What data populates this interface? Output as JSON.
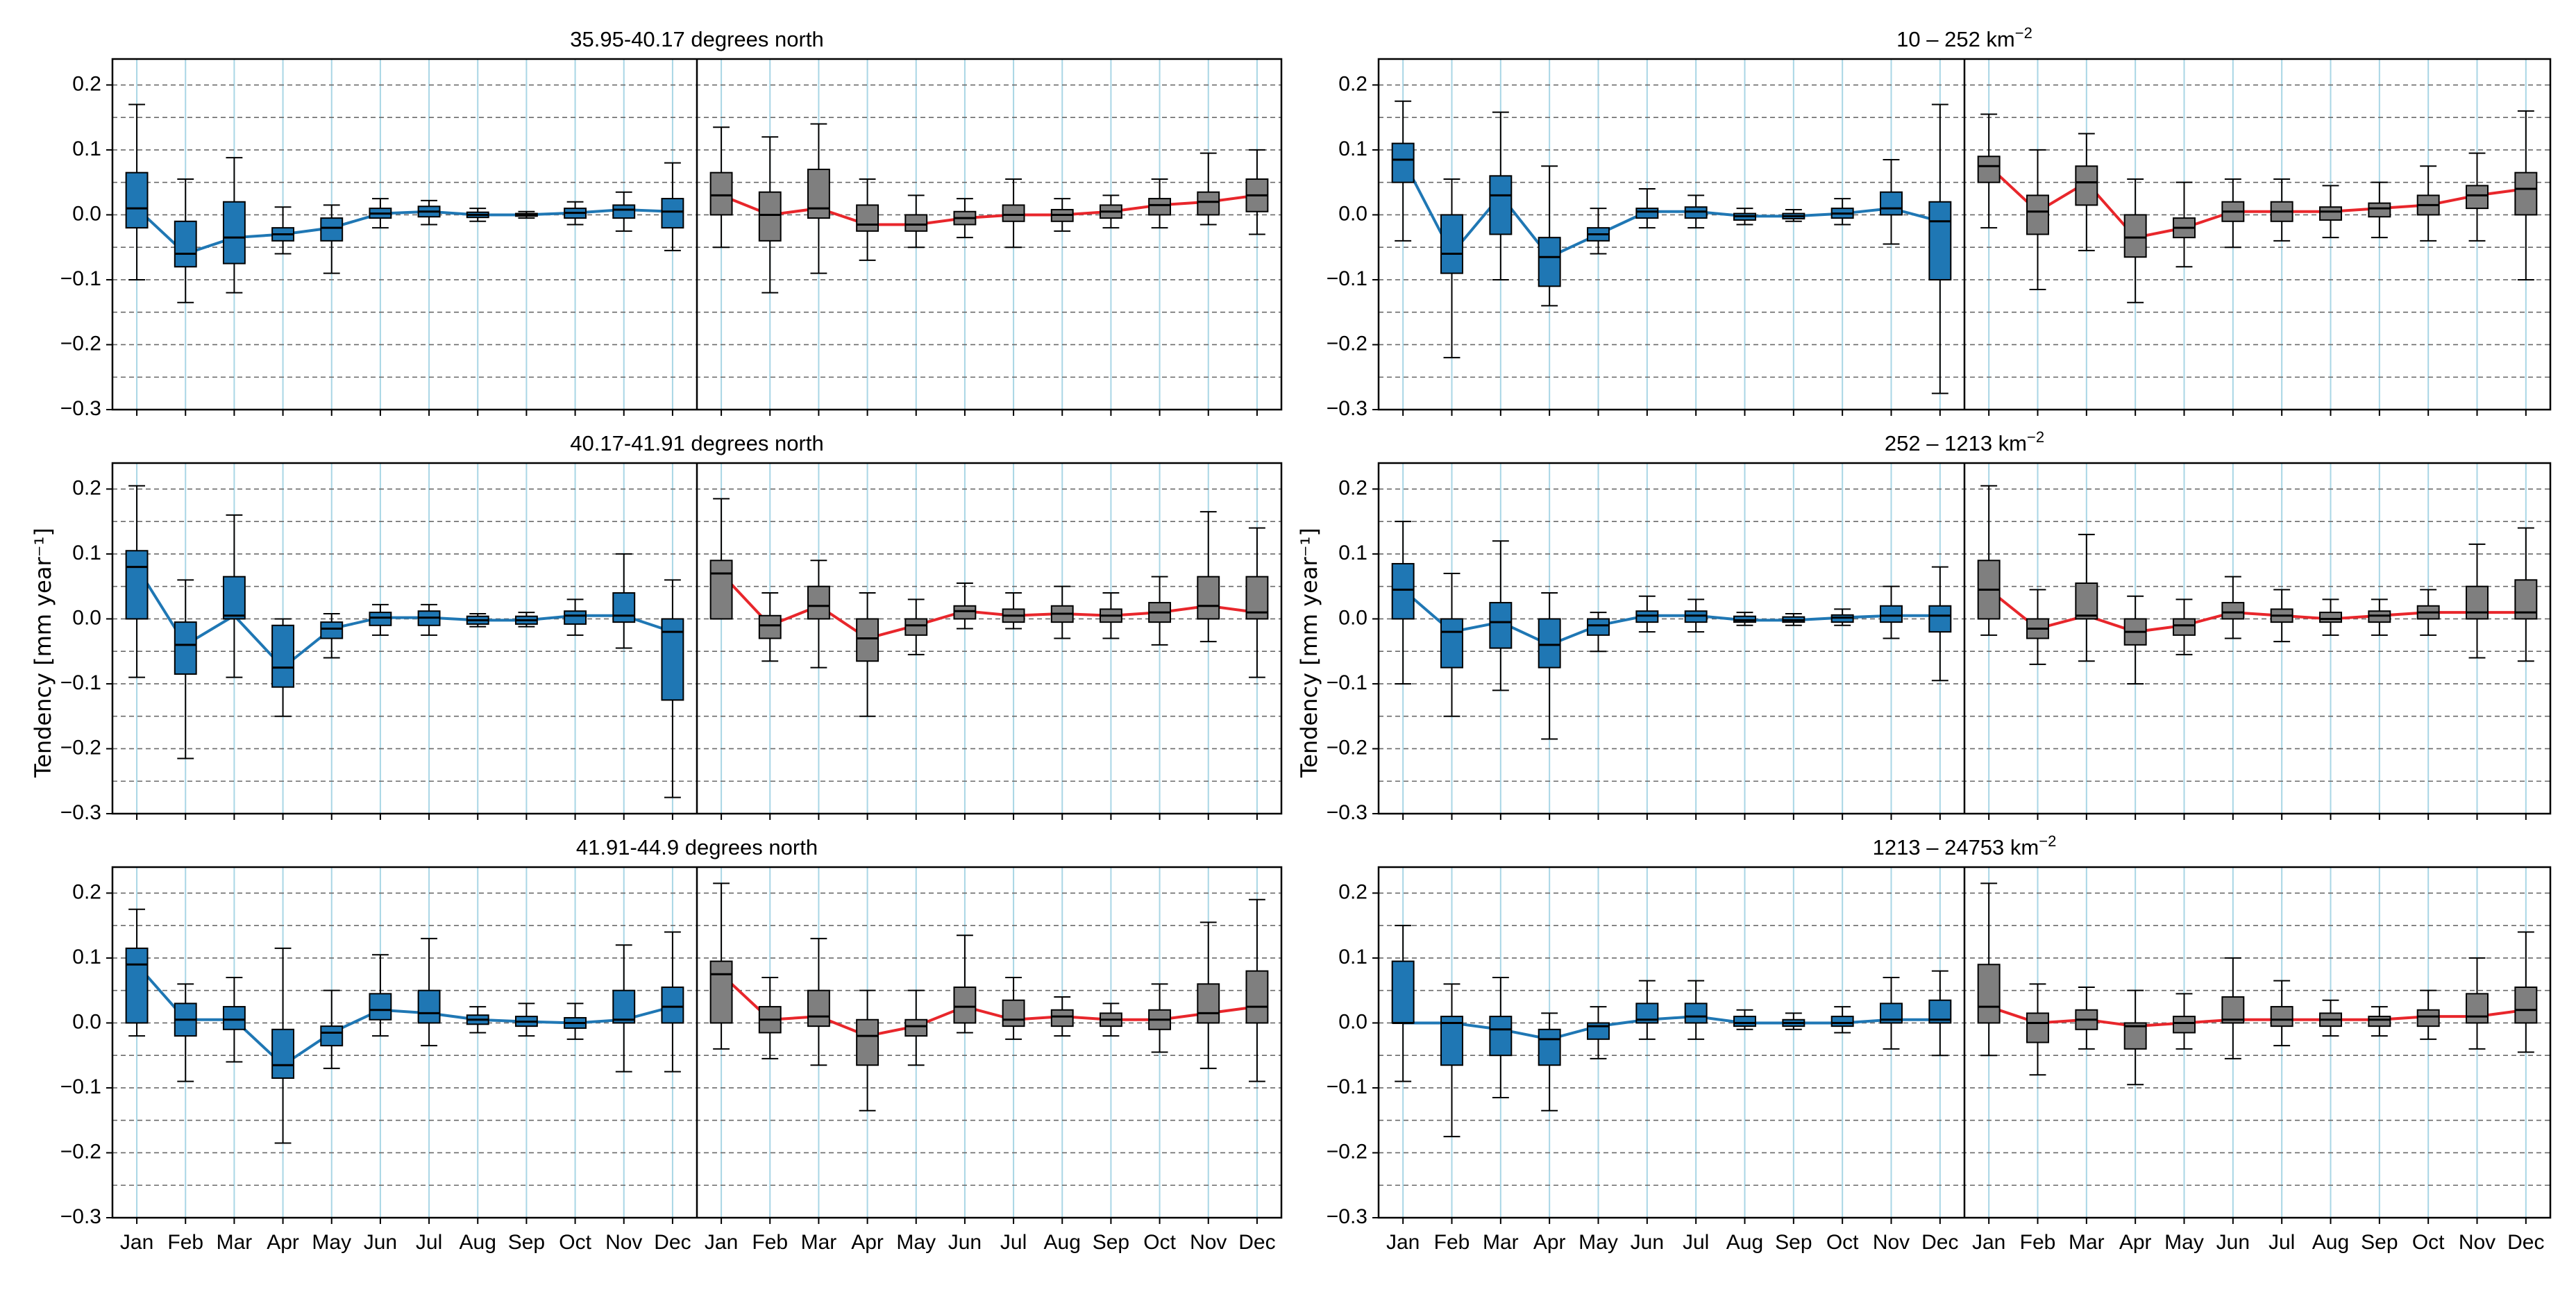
{
  "figure": {
    "y_axis_label": "Tendency [mm year⁻¹]",
    "colors": {
      "blue_box": "#1f77b4",
      "blue_line": "#1f77b4",
      "gray_box": "#7f7f7f",
      "red_line": "#e8262b",
      "grid_v": "#a9d6e5",
      "grid_h": "#6b6b6b",
      "whisker": "#000000"
    }
  },
  "chart_data": [
    {
      "type": "box",
      "title": "35.95-40.17 degrees north",
      "months": [
        "Jan",
        "Feb",
        "Mar",
        "Apr",
        "May",
        "Jun",
        "Jul",
        "Aug",
        "Sep",
        "Oct",
        "Nov",
        "Dec"
      ],
      "ylim": [
        -0.3,
        0.24
      ],
      "yticks": [
        -0.3,
        -0.2,
        -0.1,
        0.0,
        0.1,
        0.2
      ],
      "ytick_labels": [
        "−0.3",
        "−0.2",
        "−0.1",
        "0.0",
        "0.1",
        "0.2"
      ],
      "grid": true,
      "series": [
        {
          "median": [
            0.01,
            -0.06,
            -0.035,
            -0.03,
            -0.02,
            0.002,
            0.005,
            0.0,
            0.0,
            0.003,
            0.008,
            0.005
          ],
          "q1": [
            -0.02,
            -0.08,
            -0.075,
            -0.04,
            -0.04,
            -0.005,
            -0.003,
            -0.004,
            -0.002,
            -0.005,
            -0.005,
            -0.02
          ],
          "q3": [
            0.065,
            -0.01,
            0.02,
            -0.02,
            -0.005,
            0.01,
            0.013,
            0.004,
            0.002,
            0.01,
            0.015,
            0.025
          ],
          "whislo": [
            -0.1,
            -0.135,
            -0.12,
            -0.06,
            -0.09,
            -0.02,
            -0.015,
            -0.01,
            -0.005,
            -0.015,
            -0.025,
            -0.055
          ],
          "whishi": [
            0.17,
            0.055,
            0.088,
            0.012,
            0.015,
            0.025,
            0.022,
            0.01,
            0.005,
            0.02,
            0.035,
            0.08
          ]
        },
        {
          "median": [
            0.03,
            0.0,
            0.01,
            -0.015,
            -0.015,
            -0.005,
            0.0,
            0.0,
            0.005,
            0.015,
            0.02,
            0.03
          ],
          "q1": [
            0.0,
            -0.04,
            -0.005,
            -0.025,
            -0.025,
            -0.015,
            -0.01,
            -0.01,
            -0.005,
            0.0,
            0.0,
            0.005
          ],
          "q3": [
            0.065,
            0.035,
            0.07,
            0.015,
            0.0,
            0.005,
            0.015,
            0.008,
            0.015,
            0.025,
            0.035,
            0.055
          ],
          "whislo": [
            -0.05,
            -0.12,
            -0.09,
            -0.07,
            -0.05,
            -0.035,
            -0.05,
            -0.025,
            -0.02,
            -0.02,
            -0.015,
            -0.03
          ],
          "whishi": [
            0.135,
            0.12,
            0.14,
            0.055,
            0.03,
            0.025,
            0.055,
            0.025,
            0.03,
            0.055,
            0.095,
            0.1
          ]
        }
      ]
    },
    {
      "type": "box",
      "title": "10 – 252 km",
      "title_sup": "−2",
      "months": [
        "Jan",
        "Feb",
        "Mar",
        "Apr",
        "May",
        "Jun",
        "Jul",
        "Aug",
        "Sep",
        "Oct",
        "Nov",
        "Dec"
      ],
      "ylim": [
        -0.3,
        0.24
      ],
      "yticks": [
        -0.3,
        -0.2,
        -0.1,
        0.0,
        0.1,
        0.2
      ],
      "ytick_labels": [
        "−0.3",
        "−0.2",
        "−0.1",
        "0.0",
        "0.1",
        "0.2"
      ],
      "grid": true,
      "series": [
        {
          "median": [
            0.085,
            -0.06,
            0.03,
            -0.065,
            -0.03,
            0.005,
            0.005,
            -0.002,
            -0.002,
            0.002,
            0.01,
            -0.01
          ],
          "q1": [
            0.05,
            -0.09,
            -0.03,
            -0.11,
            -0.04,
            -0.005,
            -0.005,
            -0.008,
            -0.006,
            -0.005,
            0.0,
            -0.1
          ],
          "q3": [
            0.11,
            0.0,
            0.06,
            -0.035,
            -0.02,
            0.01,
            0.012,
            0.002,
            0.002,
            0.01,
            0.035,
            0.02
          ],
          "whislo": [
            -0.04,
            -0.22,
            -0.1,
            -0.14,
            -0.06,
            -0.02,
            -0.02,
            -0.015,
            -0.01,
            -0.015,
            -0.045,
            -0.275
          ],
          "whishi": [
            0.175,
            0.055,
            0.158,
            0.075,
            0.01,
            0.04,
            0.03,
            0.01,
            0.008,
            0.025,
            0.085,
            0.17
          ]
        },
        {
          "median": [
            0.075,
            0.005,
            0.05,
            -0.035,
            -0.02,
            0.005,
            0.005,
            0.005,
            0.01,
            0.015,
            0.03,
            0.04
          ],
          "q1": [
            0.05,
            -0.03,
            0.015,
            -0.065,
            -0.035,
            -0.01,
            -0.01,
            -0.008,
            -0.003,
            0.0,
            0.01,
            0.0
          ],
          "q3": [
            0.09,
            0.03,
            0.075,
            0.0,
            -0.005,
            0.02,
            0.02,
            0.012,
            0.018,
            0.03,
            0.045,
            0.065
          ],
          "whislo": [
            -0.02,
            -0.115,
            -0.055,
            -0.135,
            -0.08,
            -0.05,
            -0.04,
            -0.035,
            -0.035,
            -0.04,
            -0.04,
            -0.1
          ],
          "whishi": [
            0.155,
            0.1,
            0.125,
            0.055,
            0.05,
            0.055,
            0.055,
            0.045,
            0.05,
            0.075,
            0.095,
            0.16
          ]
        }
      ]
    },
    {
      "type": "box",
      "title": "40.17-41.91 degrees north",
      "months": [
        "Jan",
        "Feb",
        "Mar",
        "Apr",
        "May",
        "Jun",
        "Jul",
        "Aug",
        "Sep",
        "Oct",
        "Nov",
        "Dec"
      ],
      "ylim": [
        -0.3,
        0.24
      ],
      "yticks": [
        -0.3,
        -0.2,
        -0.1,
        0.0,
        0.1,
        0.2
      ],
      "ytick_labels": [
        "−0.3",
        "−0.2",
        "−0.1",
        "0.0",
        "0.1",
        "0.2"
      ],
      "grid": true,
      "series": [
        {
          "median": [
            0.08,
            -0.04,
            0.005,
            -0.075,
            -0.015,
            0.002,
            0.002,
            -0.002,
            -0.002,
            0.005,
            0.005,
            -0.02
          ],
          "q1": [
            0.0,
            -0.085,
            0.0,
            -0.105,
            -0.03,
            -0.01,
            -0.01,
            -0.008,
            -0.008,
            -0.008,
            -0.005,
            -0.125
          ],
          "q3": [
            0.105,
            -0.005,
            0.065,
            -0.01,
            -0.005,
            0.01,
            0.012,
            0.004,
            0.004,
            0.012,
            0.04,
            0.0
          ],
          "whislo": [
            -0.09,
            -0.215,
            -0.09,
            -0.15,
            -0.06,
            -0.025,
            -0.025,
            -0.012,
            -0.012,
            -0.025,
            -0.045,
            -0.275
          ],
          "whishi": [
            0.205,
            0.06,
            0.16,
            0.0,
            0.008,
            0.022,
            0.022,
            0.008,
            0.01,
            0.03,
            0.1,
            0.06
          ]
        },
        {
          "median": [
            0.07,
            -0.01,
            0.02,
            -0.03,
            -0.01,
            0.012,
            0.005,
            0.008,
            0.005,
            0.01,
            0.02,
            0.01
          ],
          "q1": [
            0.0,
            -0.03,
            0.0,
            -0.065,
            -0.025,
            0.0,
            -0.005,
            -0.005,
            -0.005,
            -0.005,
            0.0,
            0.0
          ],
          "q3": [
            0.09,
            0.005,
            0.05,
            0.0,
            0.0,
            0.02,
            0.015,
            0.02,
            0.015,
            0.025,
            0.065,
            0.065
          ],
          "whislo": [
            0.0,
            -0.065,
            -0.075,
            -0.15,
            -0.055,
            -0.015,
            -0.015,
            -0.03,
            -0.03,
            -0.04,
            -0.035,
            -0.09
          ],
          "whishi": [
            0.185,
            0.04,
            0.09,
            0.04,
            0.03,
            0.055,
            0.04,
            0.05,
            0.04,
            0.065,
            0.165,
            0.14
          ]
        }
      ]
    },
    {
      "type": "box",
      "title": "252 – 1213 km",
      "title_sup": "−2",
      "months": [
        "Jan",
        "Feb",
        "Mar",
        "Apr",
        "May",
        "Jun",
        "Jul",
        "Aug",
        "Sep",
        "Oct",
        "Nov",
        "Dec"
      ],
      "ylim": [
        -0.3,
        0.24
      ],
      "yticks": [
        -0.3,
        -0.2,
        -0.1,
        0.0,
        0.1,
        0.2
      ],
      "ytick_labels": [
        "−0.3",
        "−0.2",
        "−0.1",
        "0.0",
        "0.1",
        "0.2"
      ],
      "grid": true,
      "series": [
        {
          "median": [
            0.045,
            -0.02,
            -0.005,
            -0.04,
            -0.01,
            0.005,
            0.005,
            -0.002,
            -0.002,
            0.002,
            0.005,
            0.005
          ],
          "q1": [
            0.0,
            -0.075,
            -0.045,
            -0.075,
            -0.025,
            -0.005,
            -0.005,
            -0.005,
            -0.005,
            -0.005,
            -0.005,
            -0.02
          ],
          "q3": [
            0.085,
            0.0,
            0.025,
            0.0,
            0.0,
            0.012,
            0.012,
            0.004,
            0.003,
            0.006,
            0.02,
            0.02
          ],
          "whislo": [
            -0.1,
            -0.15,
            -0.11,
            -0.185,
            -0.05,
            -0.02,
            -0.02,
            -0.01,
            -0.01,
            -0.01,
            -0.03,
            -0.095
          ],
          "whishi": [
            0.15,
            0.07,
            0.12,
            0.04,
            0.01,
            0.035,
            0.03,
            0.01,
            0.008,
            0.015,
            0.05,
            0.08
          ]
        },
        {
          "median": [
            0.045,
            -0.015,
            0.005,
            -0.02,
            -0.01,
            0.01,
            0.005,
            0.0,
            0.005,
            0.01,
            0.01,
            0.01
          ],
          "q1": [
            0.0,
            -0.03,
            0.0,
            -0.04,
            -0.025,
            0.0,
            -0.005,
            -0.005,
            -0.005,
            0.0,
            0.0,
            0.0
          ],
          "q3": [
            0.09,
            0.0,
            0.055,
            0.0,
            0.0,
            0.025,
            0.015,
            0.01,
            0.012,
            0.02,
            0.05,
            0.06
          ],
          "whislo": [
            -0.025,
            -0.07,
            -0.065,
            -0.1,
            -0.055,
            -0.03,
            -0.035,
            -0.025,
            -0.025,
            -0.025,
            -0.06,
            -0.065
          ],
          "whishi": [
            0.205,
            0.045,
            0.13,
            0.035,
            0.03,
            0.065,
            0.045,
            0.03,
            0.03,
            0.045,
            0.115,
            0.14
          ]
        }
      ]
    },
    {
      "type": "box",
      "title": "41.91-44.9 degrees north",
      "months": [
        "Jan",
        "Feb",
        "Mar",
        "Apr",
        "May",
        "Jun",
        "Jul",
        "Aug",
        "Sep",
        "Oct",
        "Nov",
        "Dec"
      ],
      "ylim": [
        -0.3,
        0.24
      ],
      "yticks": [
        -0.3,
        -0.2,
        -0.1,
        0.0,
        0.1,
        0.2
      ],
      "ytick_labels": [
        "−0.3",
        "−0.2",
        "−0.1",
        "0.0",
        "0.1",
        "0.2"
      ],
      "grid": true,
      "series": [
        {
          "median": [
            0.09,
            0.005,
            0.005,
            -0.065,
            -0.015,
            0.02,
            0.015,
            0.005,
            0.002,
            0.0,
            0.005,
            0.025
          ],
          "q1": [
            0.0,
            -0.02,
            -0.01,
            -0.085,
            -0.035,
            0.005,
            0.0,
            -0.002,
            -0.005,
            -0.008,
            0.0,
            0.0
          ],
          "q3": [
            0.115,
            0.03,
            0.025,
            -0.01,
            -0.005,
            0.045,
            0.05,
            0.012,
            0.01,
            0.008,
            0.05,
            0.055
          ],
          "whislo": [
            -0.02,
            -0.09,
            -0.06,
            -0.185,
            -0.07,
            -0.02,
            -0.035,
            -0.015,
            -0.02,
            -0.025,
            -0.075,
            -0.075
          ],
          "whishi": [
            0.175,
            0.06,
            0.07,
            0.115,
            0.05,
            0.105,
            0.13,
            0.025,
            0.03,
            0.03,
            0.12,
            0.14
          ]
        },
        {
          "median": [
            0.075,
            0.005,
            0.01,
            -0.02,
            -0.005,
            0.025,
            0.005,
            0.01,
            0.005,
            0.005,
            0.015,
            0.025
          ],
          "q1": [
            0.0,
            -0.015,
            -0.005,
            -0.065,
            -0.02,
            0.0,
            -0.005,
            -0.005,
            -0.005,
            -0.01,
            0.0,
            0.0
          ],
          "q3": [
            0.095,
            0.025,
            0.05,
            0.005,
            0.005,
            0.055,
            0.035,
            0.02,
            0.015,
            0.02,
            0.06,
            0.08
          ],
          "whislo": [
            -0.04,
            -0.055,
            -0.065,
            -0.135,
            -0.065,
            -0.015,
            -0.025,
            -0.02,
            -0.02,
            -0.045,
            -0.07,
            -0.09
          ],
          "whishi": [
            0.215,
            0.07,
            0.13,
            0.05,
            0.05,
            0.135,
            0.07,
            0.04,
            0.03,
            0.06,
            0.155,
            0.19
          ]
        }
      ]
    },
    {
      "type": "box",
      "title": "1213 – 24753 km",
      "title_sup": "−2",
      "months": [
        "Jan",
        "Feb",
        "Mar",
        "Apr",
        "May",
        "Jun",
        "Jul",
        "Aug",
        "Sep",
        "Oct",
        "Nov",
        "Dec"
      ],
      "ylim": [
        -0.3,
        0.24
      ],
      "yticks": [
        -0.3,
        -0.2,
        -0.1,
        0.0,
        0.1,
        0.2
      ],
      "ytick_labels": [
        "−0.3",
        "−0.2",
        "−0.1",
        "0.0",
        "0.1",
        "0.2"
      ],
      "grid": true,
      "series": [
        {
          "median": [
            0.0,
            0.0,
            -0.01,
            -0.025,
            -0.005,
            0.005,
            0.01,
            0.0,
            0.0,
            0.0,
            0.005,
            0.005
          ],
          "q1": [
            0.0,
            -0.065,
            -0.05,
            -0.065,
            -0.025,
            0.0,
            0.0,
            -0.005,
            -0.005,
            -0.005,
            0.0,
            0.0
          ],
          "q3": [
            0.095,
            0.01,
            0.01,
            -0.01,
            0.0,
            0.03,
            0.03,
            0.01,
            0.005,
            0.01,
            0.03,
            0.035
          ],
          "whislo": [
            -0.09,
            -0.175,
            -0.115,
            -0.135,
            -0.055,
            -0.025,
            -0.025,
            -0.01,
            -0.01,
            -0.015,
            -0.04,
            -0.05
          ],
          "whishi": [
            0.15,
            0.06,
            0.07,
            0.015,
            0.025,
            0.065,
            0.065,
            0.02,
            0.015,
            0.025,
            0.07,
            0.08
          ]
        },
        {
          "median": [
            0.025,
            0.0,
            0.005,
            -0.005,
            0.0,
            0.005,
            0.005,
            0.005,
            0.005,
            0.01,
            0.01,
            0.02
          ],
          "q1": [
            0.0,
            -0.03,
            -0.01,
            -0.04,
            -0.015,
            0.0,
            -0.005,
            -0.005,
            -0.005,
            -0.005,
            0.0,
            0.0
          ],
          "q3": [
            0.09,
            0.015,
            0.02,
            0.0,
            0.01,
            0.04,
            0.025,
            0.015,
            0.01,
            0.02,
            0.045,
            0.055
          ],
          "whislo": [
            -0.05,
            -0.08,
            -0.04,
            -0.095,
            -0.04,
            -0.055,
            -0.035,
            -0.02,
            -0.02,
            -0.025,
            -0.04,
            -0.045
          ],
          "whishi": [
            0.215,
            0.06,
            0.055,
            0.05,
            0.045,
            0.1,
            0.065,
            0.035,
            0.025,
            0.05,
            0.1,
            0.14
          ]
        }
      ]
    }
  ]
}
